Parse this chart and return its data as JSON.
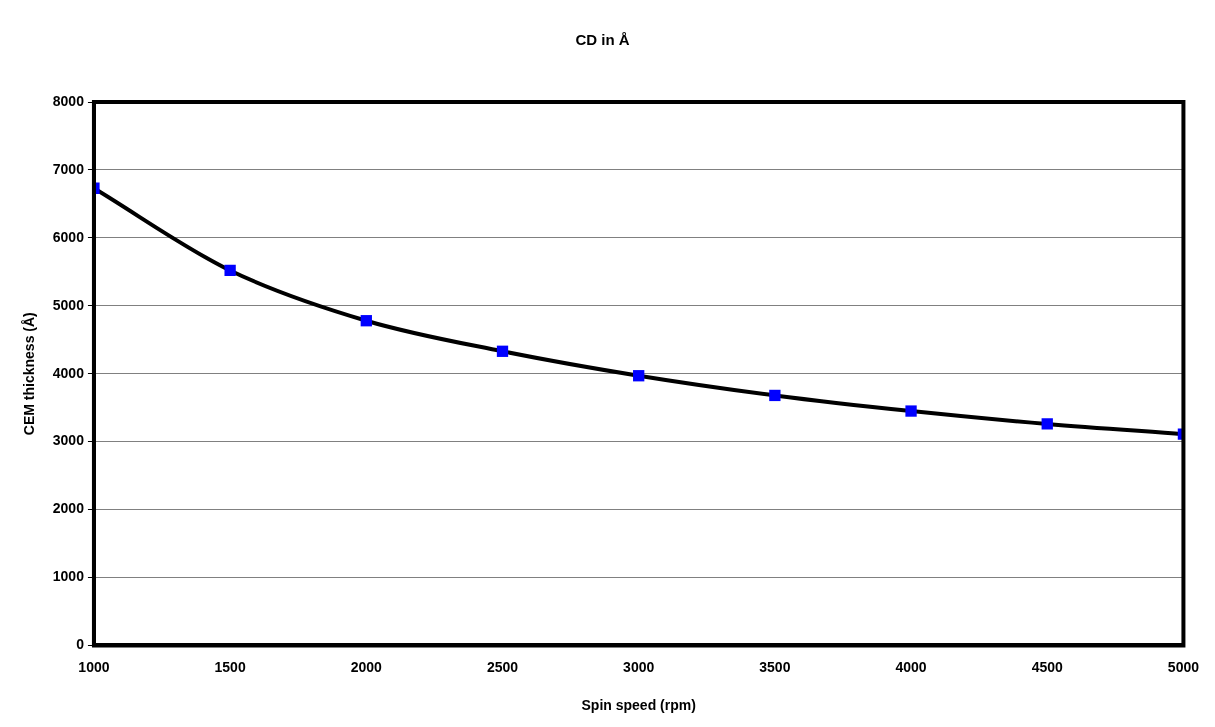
{
  "chart_data": {
    "type": "line",
    "title": "CD in Å",
    "xlabel": "Spin speed (rpm)",
    "ylabel": "CEM thickness (Å)",
    "x": [
      1000,
      1500,
      2000,
      2500,
      3000,
      3500,
      4000,
      4500,
      5000
    ],
    "series": [
      {
        "color": "#0000ff",
        "values": [
          6730,
          5520,
          4780,
          4330,
          3970,
          3680,
          3450,
          3260,
          3110
        ]
      }
    ],
    "xlim": [
      1000,
      5000
    ],
    "xticks": [
      1000,
      1500,
      2000,
      2500,
      3000,
      3500,
      4000,
      4500,
      5000
    ],
    "ylim": [
      0,
      8000
    ],
    "yticks": [
      0,
      1000,
      2000,
      3000,
      4000,
      5000,
      6000,
      7000,
      8000
    ],
    "grid": "y",
    "legend": false,
    "marker": "square",
    "line_style": "solid"
  }
}
